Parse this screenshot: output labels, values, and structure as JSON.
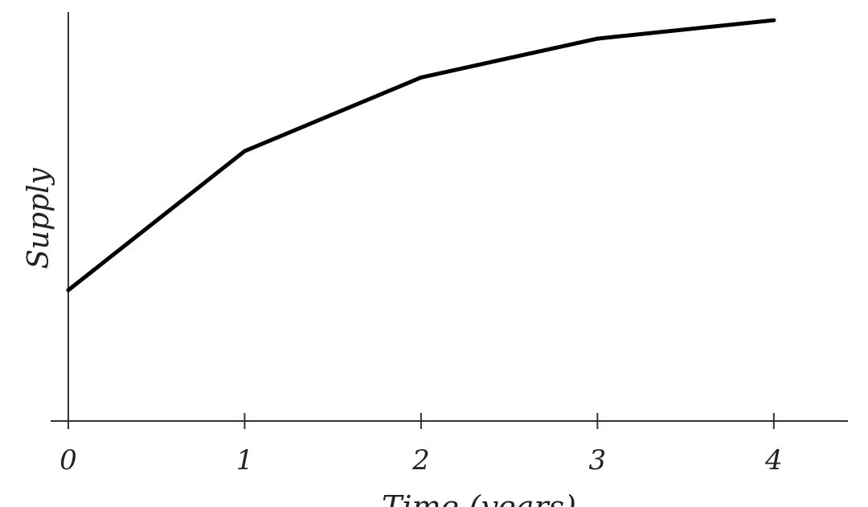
{
  "chart_data": {
    "type": "line",
    "x": [
      0,
      1,
      2,
      3,
      4
    ],
    "series": [
      {
        "name": "Supply",
        "color": "#000000",
        "values": [
          32,
          66,
          84,
          93.5,
          98
        ]
      }
    ],
    "xlim": [
      -0.1,
      4.42
    ],
    "xticks": [
      0,
      1,
      2,
      3,
      4
    ],
    "ylim": [
      0,
      100
    ],
    "x_label": "Time (years)",
    "y_label": "Supply"
  }
}
